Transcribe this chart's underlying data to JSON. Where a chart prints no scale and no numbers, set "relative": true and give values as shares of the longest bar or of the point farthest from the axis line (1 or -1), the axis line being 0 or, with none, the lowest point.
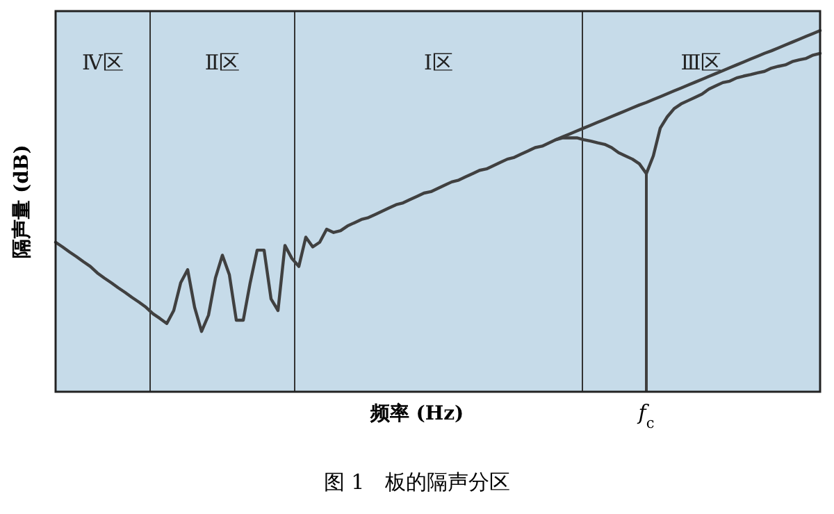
{
  "chart_data": {
    "type": "line",
    "relative": true,
    "xlabel": "频率 (Hz)",
    "ylabel": "隔声量 (dB)",
    "tick_labels": false,
    "categories": [
      null,
      null,
      null,
      null,
      null,
      null,
      null,
      null,
      null,
      null,
      null,
      null,
      null,
      null,
      null,
      null,
      null,
      null,
      null,
      null,
      null,
      null,
      null,
      null,
      null,
      null,
      null,
      null,
      null,
      null,
      null,
      null,
      null,
      null,
      null,
      null,
      null,
      null,
      null,
      null,
      null,
      null,
      null,
      null,
      null,
      null,
      null,
      null,
      null,
      null,
      null,
      null,
      null,
      null,
      null,
      null,
      null,
      null,
      null,
      null,
      null,
      null,
      null,
      null,
      null,
      null,
      null,
      null,
      null,
      null,
      null,
      null,
      null,
      null,
      null,
      null,
      null,
      null,
      null,
      null,
      null,
      null,
      null,
      null,
      null,
      null,
      null,
      null,
      null,
      null,
      null,
      null,
      null,
      null,
      null,
      null,
      null,
      null,
      null,
      null,
      null,
      null,
      null,
      null,
      null,
      null,
      null,
      null,
      null,
      null,
      null
    ],
    "series": [
      {
        "color": "#404040",
        "values": [
          0.414,
          0.401,
          0.387,
          0.374,
          0.36,
          0.347,
          0.329,
          0.315,
          0.302,
          0.288,
          0.275,
          0.261,
          0.248,
          0.234,
          0.216,
          0.203,
          0.189,
          0.225,
          0.302,
          0.338,
          0.234,
          0.167,
          0.212,
          0.315,
          0.378,
          0.324,
          0.198,
          0.198,
          0.302,
          0.392,
          0.392,
          0.257,
          0.225,
          0.405,
          0.369,
          0.347,
          0.428,
          0.401,
          0.414,
          0.45,
          0.441,
          0.446,
          0.459,
          0.468,
          0.477,
          0.482,
          0.491,
          0.5,
          0.509,
          0.518,
          0.523,
          0.532,
          0.541,
          0.55,
          0.554,
          0.563,
          0.572,
          0.581,
          0.586,
          0.595,
          0.604,
          0.613,
          0.617,
          0.626,
          0.635,
          0.644,
          0.649,
          0.658,
          0.667,
          0.676,
          0.68,
          0.689,
          0.698,
          0.703,
          0.703,
          0.703,
          0.698,
          0.694,
          0.689,
          0.685,
          0.676,
          0.662,
          0.653,
          0.644,
          0.631,
          0.604,
          0.653,
          0.73,
          0.761,
          0.784,
          0.797,
          0.806,
          0.815,
          0.824,
          0.838,
          0.847,
          0.856,
          0.86,
          0.869,
          0.874,
          0.878,
          0.883,
          0.887,
          0.896,
          0.901,
          0.905,
          0.914,
          0.919,
          0.923,
          0.932,
          0.937
        ]
      },
      {
        "color": "#404040",
        "values": [
          null,
          null,
          null,
          null,
          null,
          null,
          null,
          null,
          null,
          null,
          null,
          null,
          null,
          null,
          null,
          null,
          null,
          null,
          null,
          null,
          null,
          null,
          null,
          null,
          null,
          null,
          null,
          null,
          null,
          null,
          null,
          null,
          null,
          null,
          null,
          null,
          null,
          null,
          null,
          null,
          null,
          null,
          null,
          null,
          null,
          null,
          null,
          null,
          null,
          null,
          null,
          null,
          null,
          null,
          null,
          null,
          null,
          null,
          null,
          null,
          null,
          null,
          null,
          null,
          null,
          null,
          null,
          null,
          null,
          null,
          null,
          null,
          0.698,
          0.706,
          0.714,
          0.722,
          0.73,
          0.738,
          0.746,
          0.754,
          0.762,
          0.77,
          0.778,
          0.786,
          0.794,
          0.801,
          0.809,
          0.817,
          0.825,
          0.833,
          0.841,
          0.849,
          0.857,
          0.865,
          0.873,
          0.881,
          0.889,
          0.897,
          0.905,
          0.913,
          0.921,
          0.929,
          0.937,
          0.944,
          0.952,
          0.96,
          0.968,
          0.976,
          0.984,
          0.992,
          1.0
        ]
      }
    ],
    "annotations": [
      "Ⅳ区",
      "Ⅱ区",
      "Ⅰ区",
      "Ⅲ区",
      "f$_{c}$",
      "图 1　板的隔声分区"
    ]
  }
}
